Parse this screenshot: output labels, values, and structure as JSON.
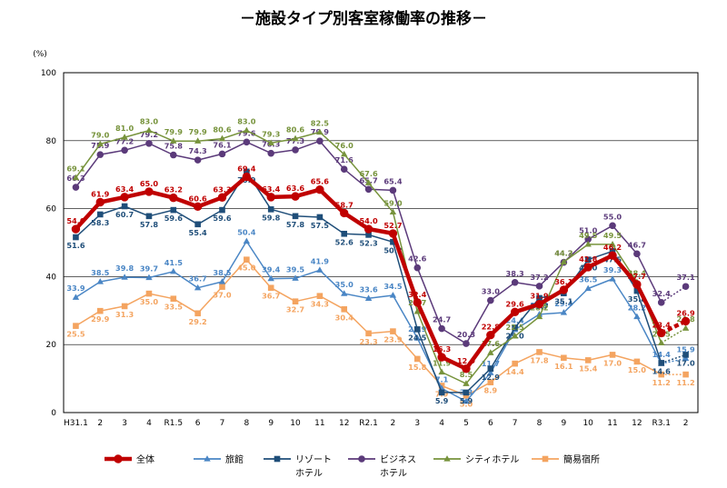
{
  "chart_data": {
    "type": "line",
    "title": "－施設タイプ別客室稼働率の推移－",
    "ylabel": "(%)",
    "xlabel": "",
    "ylim": [
      0,
      100
    ],
    "yticks": [
      0,
      20,
      40,
      60,
      80,
      100
    ],
    "grid": true,
    "legend_position": "bottom",
    "categories": [
      "H31.1",
      "2",
      "3",
      "4",
      "R1.5",
      "6",
      "7",
      "8",
      "9",
      "10",
      "11",
      "12",
      "R2.1",
      "2",
      "3",
      "4",
      "5",
      "6",
      "7",
      "8",
      "9",
      "10",
      "11",
      "12",
      "R3.1",
      "2"
    ],
    "series": [
      {
        "name": "全体",
        "color": "#c00000",
        "marker": "circle",
        "width": 4.5,
        "values": [
          54.0,
          61.9,
          63.4,
          65.0,
          63.2,
          60.6,
          63.3,
          69.4,
          63.4,
          63.6,
          65.6,
          58.7,
          54.0,
          52.7,
          32.4,
          16.3,
          12.9,
          22.8,
          29.6,
          31.9,
          36.1,
          42.8,
          46.2,
          37.7,
          23.4,
          26.9
        ],
        "labels": [
          "54.0",
          "61.9",
          "63.4",
          "65.0",
          "63.2",
          "60.6",
          "63.3",
          "69.4",
          "63.4",
          "63.6",
          "65.6",
          "58.7",
          "54.0",
          "52.7",
          "32.4",
          "16.3",
          "12.9",
          "22.8",
          "29.6",
          "31.9",
          "36.1",
          "42.8",
          "46.2",
          "37.7",
          "23.4",
          "26.9"
        ]
      },
      {
        "name": "旅館",
        "color": "#4a86c5",
        "marker": "triangle",
        "width": 1.5,
        "values": [
          33.9,
          38.5,
          39.8,
          39.7,
          41.5,
          36.7,
          38.5,
          50.4,
          39.4,
          39.5,
          41.9,
          35.0,
          33.6,
          34.5,
          21.9,
          7.1,
          3.3,
          11.7,
          24.4,
          28.9,
          29.4,
          36.5,
          39.3,
          28.2,
          14.4,
          15.9
        ],
        "labels": [
          "33.9",
          "38.5",
          "39.8",
          "39.7",
          "41.5",
          "36.7",
          "38.5",
          "50.4",
          "39.4",
          "39.5",
          "41.9",
          "35.0",
          "33.6",
          "34.5",
          "21.9",
          "7.1",
          "3.3",
          "11.7",
          "24.4",
          "28.9",
          "29.4",
          "36.5",
          "39.3",
          "28.2",
          "14.4",
          "15.9"
        ]
      },
      {
        "name": "リゾート\nホテル",
        "color": "#1f4e79",
        "marker": "square",
        "width": 1.5,
        "values": [
          51.6,
          58.3,
          60.7,
          57.8,
          59.6,
          55.4,
          59.6,
          70.9,
          59.8,
          57.8,
          57.5,
          52.6,
          52.3,
          50.2,
          24.5,
          5.9,
          5.9,
          12.9,
          25.0,
          33.7,
          35.1,
          45.0,
          47.5,
          35.8,
          14.6,
          17.0
        ],
        "labels": [
          "51.6",
          "58.3",
          "60.7",
          "57.8",
          "59.6",
          "55.4",
          "59.6",
          "70.9",
          "59.8",
          "57.8",
          "57.5",
          "52.6",
          "52.3",
          "50.2",
          "24.5",
          "5.9",
          "5.9",
          "12.9",
          "25.0",
          "33.7",
          "35.1",
          "45.0",
          "47.5",
          "35.8",
          "14.6",
          "17.0"
        ]
      },
      {
        "name": "ビジネス\nホテル",
        "color": "#5b3a7a",
        "marker": "circle",
        "width": 1.5,
        "values": [
          66.3,
          75.9,
          77.2,
          79.2,
          75.8,
          74.3,
          76.1,
          79.6,
          76.3,
          77.3,
          79.9,
          71.6,
          65.7,
          65.4,
          42.6,
          24.7,
          20.3,
          33.0,
          38.3,
          37.2,
          44.2,
          51.0,
          55.0,
          46.7,
          32.4,
          37.1
        ],
        "labels": [
          "66.3",
          "75.9",
          "77.2",
          "79.2",
          "75.8",
          "74.3",
          "76.1",
          "79.6",
          "76.3",
          "77.3",
          "79.9",
          "71.6",
          "65.7",
          "65.4",
          "42.6",
          "24.7",
          "20.3",
          "33.0",
          "38.3",
          "37.2",
          "44.2",
          "51.0",
          "55.0",
          "46.7",
          "32.4",
          "37.1"
        ]
      },
      {
        "name": "シティホテル",
        "color": "#77933c",
        "marker": "triangle",
        "width": 1.5,
        "values": [
          69.1,
          79.0,
          81.0,
          83.0,
          79.9,
          79.9,
          80.6,
          83.0,
          79.3,
          80.6,
          82.5,
          76.0,
          67.6,
          59.0,
          29.7,
          11.9,
          8.5,
          17.6,
          22.5,
          28.2,
          44.3,
          49.5,
          49.5,
          38.4,
          20.5,
          24.8
        ],
        "labels": [
          "69.1",
          "79.0",
          "81.0",
          "83.0",
          "79.9",
          "79.9",
          "80.6",
          "83.0",
          "79.3",
          "80.6",
          "82.5",
          "76.0",
          "67.6",
          "59.0",
          "29.7",
          "11.9",
          "8.5",
          "17.6",
          "22.5",
          "28.2",
          "44.3",
          "49.5",
          "49.5",
          "38.4",
          "20.5",
          "24.8"
        ]
      },
      {
        "name": "簡易宿所",
        "color": "#f4a460",
        "marker": "square",
        "width": 1.5,
        "values": [
          25.5,
          29.9,
          31.3,
          35.0,
          33.5,
          29.2,
          37.0,
          45.0,
          36.7,
          32.7,
          34.3,
          30.4,
          23.3,
          23.9,
          15.8,
          7.9,
          5.0,
          8.9,
          14.4,
          17.8,
          16.1,
          15.4,
          17.0,
          15.0,
          11.2,
          11.2
        ],
        "labels": [
          "25.5",
          "29.9",
          "31.3",
          "35.0",
          "33.5",
          "29.2",
          "37.0",
          "45.0",
          "36.7",
          "32.7",
          "34.3",
          "30.4",
          "23.3",
          "23.9",
          "15.8",
          "7.9",
          "5.0",
          "8.9",
          "14.4",
          "17.8",
          "16.1",
          "15.4",
          "17.0",
          "15.0",
          "11.2",
          "11.2"
        ]
      }
    ]
  }
}
